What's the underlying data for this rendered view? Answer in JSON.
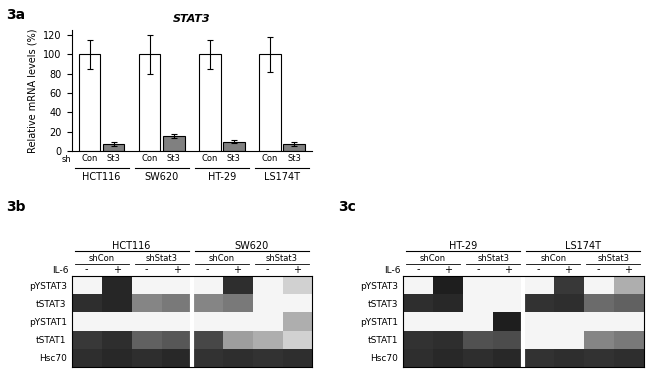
{
  "chart_data": [
    {
      "type": "bar",
      "panel_label": "3a",
      "title": "STAT3",
      "ylabel": "Relative mRNA levels (%)",
      "series_prefix": "sh",
      "categories": [
        "HCT116",
        "SW620",
        "HT-29",
        "LS174T"
      ],
      "series": [
        {
          "name": "Con",
          "color": "#ffffff",
          "values": [
            100,
            100,
            100,
            100
          ],
          "errors": [
            15,
            20,
            15,
            18
          ]
        },
        {
          "name": "St3",
          "color": "#808080",
          "values": [
            7,
            16,
            10,
            7
          ],
          "errors": [
            2,
            2,
            2,
            2
          ]
        }
      ],
      "ylim": [
        0,
        125
      ],
      "yticks": [
        0,
        20,
        40,
        60,
        80,
        100,
        120
      ],
      "grid": false
    },
    {
      "type": "heatmap",
      "panel_label": "3b",
      "xlabel": "IL-6",
      "categories": [
        "-",
        "+",
        "-",
        "+",
        "-",
        "+",
        "-",
        "+"
      ],
      "rows": [
        "pYSTAT3",
        "tSTAT3",
        "pYSTAT1",
        "tSTAT1",
        "Hsc70"
      ],
      "groups": [
        {
          "name": "HCT116",
          "subgroups": [
            "shCon",
            "shStat3"
          ]
        },
        {
          "name": "SW620",
          "subgroups": [
            "shCon",
            "shStat3"
          ]
        }
      ],
      "cells": [
        [
          0.04,
          0.85,
          0.04,
          0.04,
          0.04,
          0.82,
          0.04,
          0.18
        ],
        [
          0.82,
          0.85,
          0.48,
          0.52,
          0.48,
          0.52,
          0.04,
          0.04
        ],
        [
          0.04,
          0.04,
          0.04,
          0.04,
          0.04,
          0.04,
          0.04,
          0.32
        ],
        [
          0.78,
          0.82,
          0.62,
          0.66,
          0.72,
          0.38,
          0.32,
          0.18
        ],
        [
          0.82,
          0.84,
          0.82,
          0.84,
          0.8,
          0.82,
          0.8,
          0.82
        ]
      ],
      "clim": [
        0,
        1
      ]
    },
    {
      "type": "heatmap",
      "panel_label": "3c",
      "xlabel": "IL-6",
      "categories": [
        "-",
        "+",
        "-",
        "+",
        "-",
        "+",
        "-",
        "+"
      ],
      "rows": [
        "pYSTAT3",
        "tSTAT3",
        "pYSTAT1",
        "tSTAT1",
        "Hsc70"
      ],
      "groups": [
        {
          "name": "HT-29",
          "subgroups": [
            "shCon",
            "shStat3"
          ]
        },
        {
          "name": "LS174T",
          "subgroups": [
            "shCon",
            "shStat3"
          ]
        }
      ],
      "cells": [
        [
          0.04,
          0.88,
          0.04,
          0.04,
          0.04,
          0.78,
          0.04,
          0.32
        ],
        [
          0.82,
          0.84,
          0.04,
          0.04,
          0.8,
          0.82,
          0.58,
          0.62
        ],
        [
          0.04,
          0.04,
          0.04,
          0.88,
          0.04,
          0.04,
          0.04,
          0.04
        ],
        [
          0.8,
          0.82,
          0.68,
          0.7,
          0.04,
          0.04,
          0.48,
          0.52
        ],
        [
          0.82,
          0.84,
          0.82,
          0.84,
          0.8,
          0.82,
          0.8,
          0.82
        ]
      ],
      "clim": [
        0,
        1
      ]
    }
  ]
}
